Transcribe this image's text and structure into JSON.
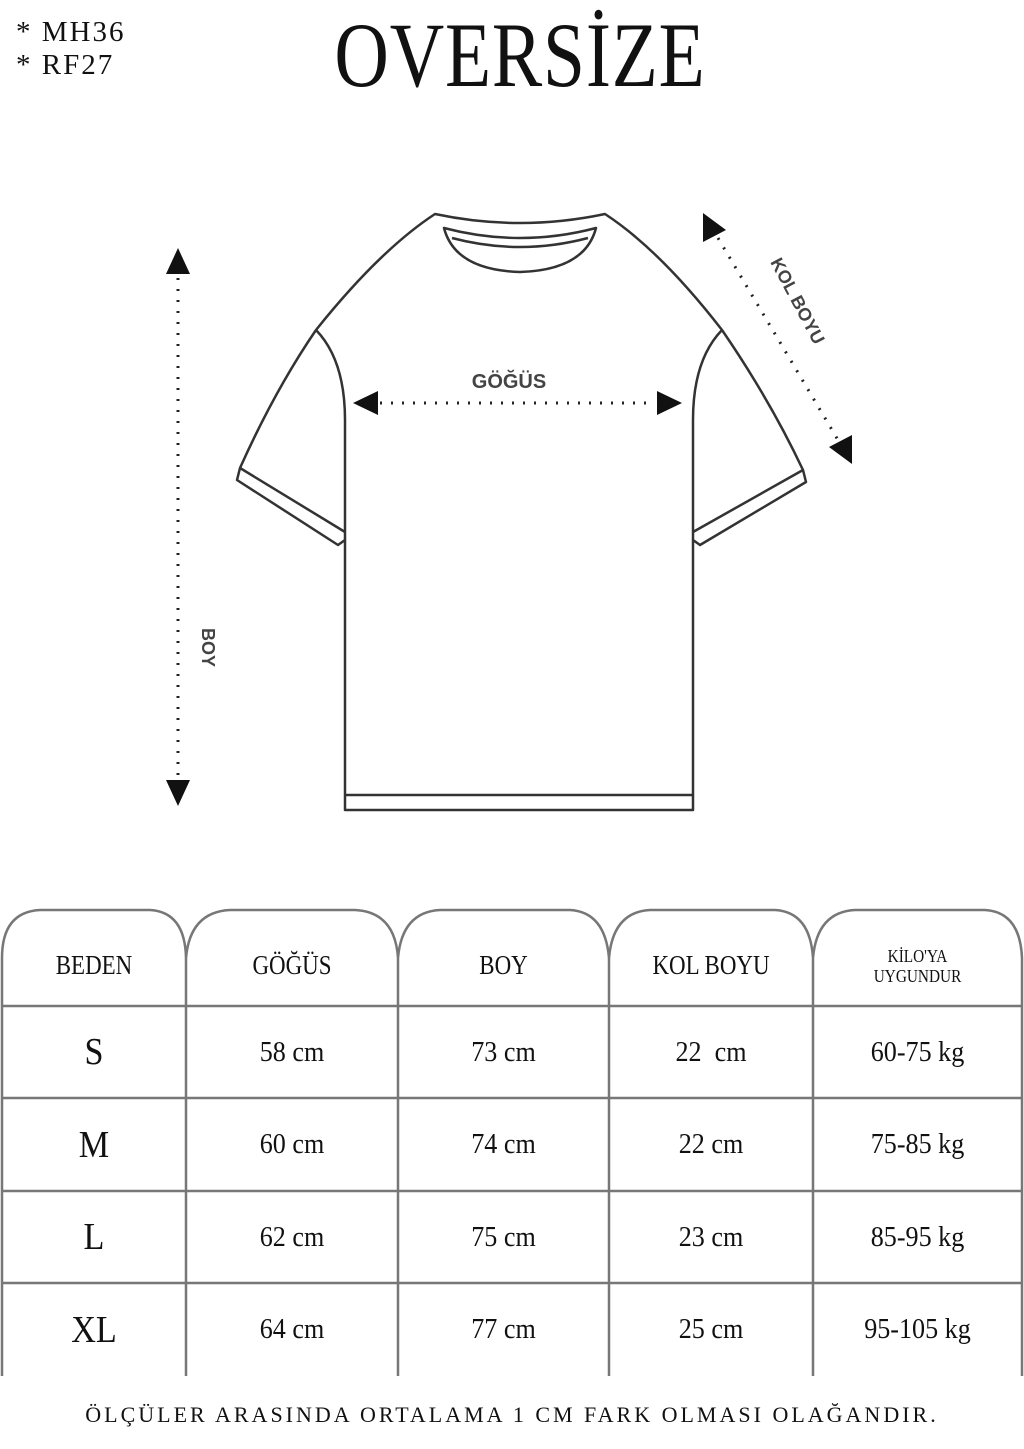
{
  "codes": [
    "* MH36",
    "* RF27"
  ],
  "title": "OVERSİZE",
  "diagram_labels": {
    "chest": "GÖĞÜS",
    "length": "BOY",
    "sleeve": "KOL BOYU"
  },
  "table": {
    "headers": [
      "BEDEN",
      "GÖĞÜS",
      "BOY",
      "KOL BOYU",
      "KİLO'YA UYGUNDUR"
    ],
    "rows": [
      [
        "S",
        "58 cm",
        "73 cm",
        "22  cm",
        "60-75 kg"
      ],
      [
        "M",
        "60 cm",
        "74 cm",
        "22 cm",
        "75-85 kg"
      ],
      [
        "L",
        "62 cm",
        "75 cm",
        "23 cm",
        "85-95 kg"
      ],
      [
        "XL",
        "64 cm",
        "77 cm",
        "25 cm",
        "95-105 kg"
      ]
    ]
  },
  "footer": "ÖLÇÜLER ARASINDA ORTALAMA 1 CM FARK OLMASI OLAĞANDIR."
}
